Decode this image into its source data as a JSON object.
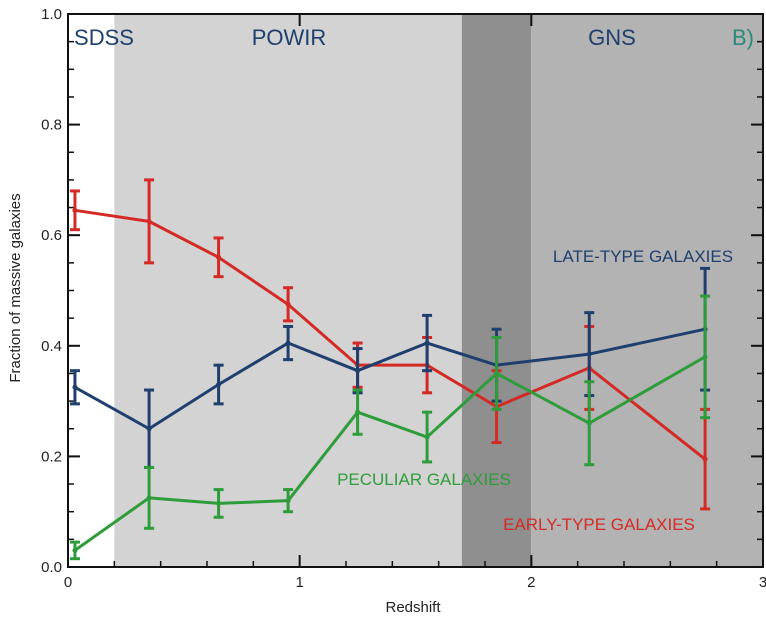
{
  "chart_data": {
    "type": "line",
    "title": "",
    "xlabel": "Redshift",
    "ylabel": "Fraction of massive galaxies",
    "xlim": [
      0,
      3
    ],
    "ylim": [
      0,
      1
    ],
    "x_ticks": [
      0,
      1,
      2,
      3
    ],
    "x_tick_labels": [
      "0",
      "1",
      "2",
      "3"
    ],
    "y_ticks": [
      0,
      0.2,
      0.4,
      0.6,
      0.8,
      1.0
    ],
    "y_tick_labels": [
      "0.0",
      "0.2",
      "0.4",
      "0.6",
      "0.8",
      "1.0"
    ],
    "panel_label": "B)",
    "regions": [
      {
        "label": "SDSS",
        "x0": 0,
        "x1": 0.2,
        "color": "#ffffff"
      },
      {
        "label": "POWIR",
        "x0": 0.2,
        "x1": 1.7,
        "color": "#d3d3d3"
      },
      {
        "label": "",
        "x0": 1.7,
        "x1": 2.0,
        "color": "#8f8f8f"
      },
      {
        "label": "GNS",
        "x0": 2.0,
        "x1": 3.0,
        "color": "#b3b3b3"
      }
    ],
    "series": [
      {
        "name": "EARLY-TYPE GALAXIES",
        "color": "#d42a25",
        "x": [
          0.03,
          0.35,
          0.65,
          0.95,
          1.25,
          1.55,
          1.85,
          2.25,
          2.75
        ],
        "y": [
          0.645,
          0.625,
          0.56,
          0.475,
          0.365,
          0.365,
          0.29,
          0.36,
          0.195
        ],
        "err": [
          0.035,
          0.075,
          0.035,
          0.03,
          0.04,
          0.05,
          0.065,
          0.075,
          0.09
        ]
      },
      {
        "name": "LATE-TYPE GALAXIES",
        "color": "#1f3f6e",
        "x": [
          0.03,
          0.35,
          0.65,
          0.95,
          1.25,
          1.55,
          1.85,
          2.25,
          2.75
        ],
        "y": [
          0.325,
          0.25,
          0.33,
          0.405,
          0.355,
          0.405,
          0.365,
          0.385,
          0.43
        ],
        "err": [
          0.03,
          0.07,
          0.035,
          0.03,
          0.04,
          0.05,
          0.065,
          0.075,
          0.11
        ]
      },
      {
        "name": "PECULIAR GALAXIES",
        "color": "#2e9c3b",
        "x": [
          0.03,
          0.35,
          0.65,
          0.95,
          1.25,
          1.55,
          1.85,
          2.25,
          2.75
        ],
        "y": [
          0.03,
          0.125,
          0.115,
          0.12,
          0.28,
          0.235,
          0.35,
          0.26,
          0.38
        ],
        "err": [
          0.015,
          0.055,
          0.025,
          0.02,
          0.04,
          0.045,
          0.065,
          0.075,
          0.11
        ]
      }
    ]
  }
}
